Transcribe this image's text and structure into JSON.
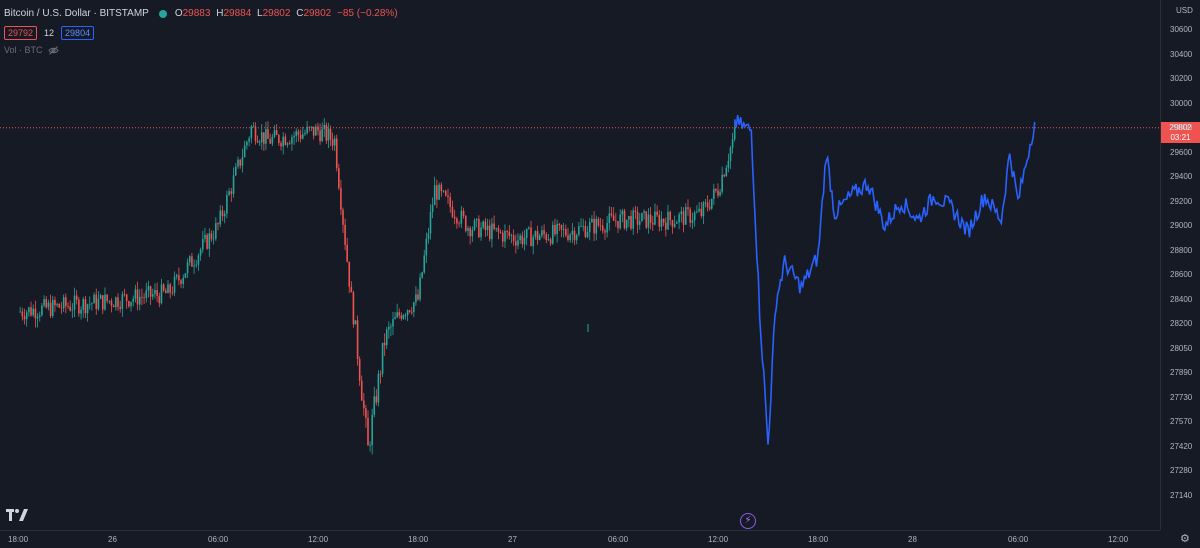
{
  "header": {
    "title": "Bitcoin / U.S. Dollar · BITSTAMP",
    "ohlc": {
      "o_label": "O",
      "o_value": "29883",
      "h_label": "H",
      "h_value": "29884",
      "l_label": "L",
      "l_value": "29802",
      "c_label": "C",
      "c_value": "29802",
      "change": "−85 (−0.28%)"
    },
    "status_color": "#26a69a"
  },
  "bidask": {
    "bid": "29792",
    "spread": "12",
    "ask": "29804"
  },
  "volume": {
    "label": "Vol · BTC",
    "icon": "eye-off-icon"
  },
  "price_axis": {
    "currency": "USD",
    "ticks": [
      "30600",
      "30400",
      "30200",
      "30000",
      "29800",
      "29600",
      "29400",
      "29200",
      "29000",
      "28800",
      "28600",
      "28400",
      "28200",
      "28050",
      "27890",
      "27730",
      "27570",
      "27420",
      "27280",
      "27140"
    ],
    "last_price": "29802",
    "countdown": "03:21"
  },
  "time_axis": {
    "ticks": [
      "18:00",
      "26",
      "06:00",
      "12:00",
      "18:00",
      "27",
      "06:00",
      "12:00",
      "18:00",
      "28",
      "06:00",
      "12:00"
    ]
  },
  "colors": {
    "up": "#26a69a",
    "down": "#ef5350",
    "line": "#2962ff",
    "background": "#161a25"
  },
  "chart_data": {
    "type": "line",
    "series": [
      {
        "style": "candles",
        "x": [
          "25 18:00",
          "25 21:00",
          "26 00:00",
          "26 03:00",
          "26 06:00",
          "26 08:00",
          "26 09:00",
          "26 12:00",
          "26 13:00",
          "26 14:00",
          "26 15:00",
          "26 16:00",
          "26 17:00",
          "26 18:00",
          "26 19:00",
          "26 21:00",
          "27 00:00",
          "27 03:00",
          "27 06:00",
          "27 09:00",
          "27 11:00",
          "27 12:00",
          "27 13:00"
        ],
        "y": [
          28300,
          28350,
          28400,
          28450,
          29000,
          29800,
          29700,
          29780,
          29700,
          28400,
          27400,
          28100,
          28300,
          28400,
          29300,
          29000,
          28900,
          28950,
          29050,
          29050,
          29100,
          29300,
          29750
        ]
      },
      {
        "style": "line",
        "x": [
          "27 13:00",
          "27 14:00",
          "27 14:30",
          "27 15:00",
          "27 15:30",
          "27 16:00",
          "27 17:00",
          "27 18:00",
          "27 18:30",
          "27 19:00",
          "27 20:00",
          "27 21:00",
          "27 22:00",
          "27 23:00",
          "28 00:00",
          "28 01:00",
          "28 02:00",
          "28 03:00",
          "28 04:00",
          "28 05:00",
          "28 05:30",
          "28 06:00",
          "28 07:00"
        ],
        "y": [
          29850,
          29780,
          28300,
          27430,
          28400,
          28700,
          28500,
          28750,
          29600,
          29100,
          29250,
          29350,
          29000,
          29200,
          29050,
          29250,
          29150,
          28950,
          29250,
          29050,
          29600,
          29200,
          29850
        ]
      }
    ],
    "ylim": [
      27140,
      30600
    ]
  }
}
